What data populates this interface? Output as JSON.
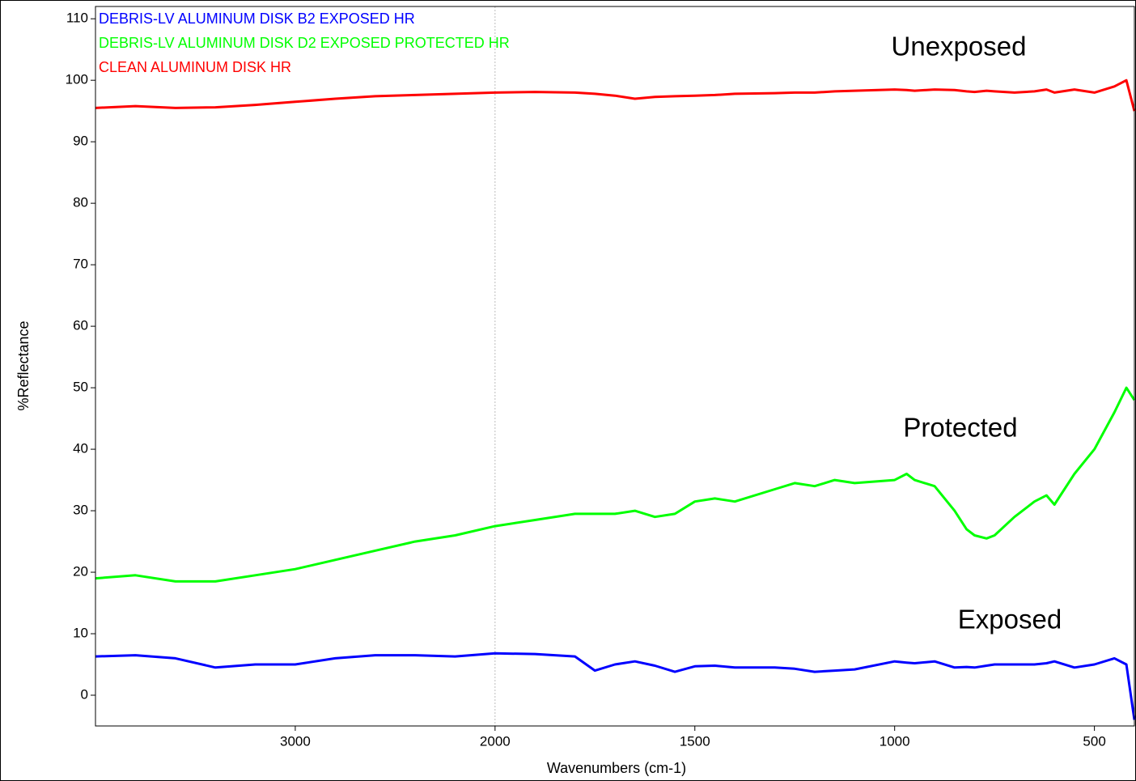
{
  "chart_data": {
    "type": "line",
    "x_label": "Wavenumbers (cm-1)",
    "y_label": "%Reflectance",
    "xlim": [
      4000,
      400
    ],
    "x_break": 2000,
    "xticks": [
      3000,
      2000,
      1500,
      1000,
      500
    ],
    "ylim": [
      -5,
      112
    ],
    "yticks": [
      0,
      10,
      20,
      30,
      40,
      50,
      60,
      70,
      80,
      90,
      100,
      110
    ],
    "legend": "upper left",
    "annotations": [
      "Unexposed",
      "Protected",
      "Exposed"
    ],
    "x": [
      4000,
      3800,
      3600,
      3400,
      3200,
      3000,
      2800,
      2600,
      2400,
      2200,
      2000,
      1900,
      1800,
      1750,
      1700,
      1650,
      1600,
      1550,
      1500,
      1450,
      1400,
      1300,
      1250,
      1200,
      1150,
      1100,
      1000,
      970,
      950,
      900,
      850,
      820,
      800,
      770,
      750,
      700,
      650,
      620,
      600,
      550,
      500,
      450,
      420,
      400
    ],
    "series": [
      {
        "name": "DEBRIS-LV ALUMINUM DISK B2 EXPOSED HR",
        "color": "#0000ff",
        "values": [
          6.3,
          6.5,
          6,
          4.5,
          5,
          5,
          6,
          6.5,
          6.5,
          6.3,
          6.8,
          6.7,
          6.3,
          4,
          5,
          5.5,
          4.8,
          3.8,
          4.7,
          4.8,
          4.5,
          4.5,
          4.3,
          3.8,
          4,
          4.2,
          5.5,
          5.3,
          5.2,
          5.5,
          4.5,
          4.6,
          4.5,
          4.8,
          5,
          5,
          5,
          5.2,
          5.5,
          4.5,
          5,
          6,
          5,
          -4
        ]
      },
      {
        "name": "DEBRIS-LV ALUMINUM DISK D2 EXPOSED PROTECTED  HR",
        "color": "#00ff00",
        "values": [
          19,
          19.5,
          18.5,
          18.5,
          19.5,
          20.5,
          22,
          23.5,
          25,
          26,
          27.5,
          28.5,
          29.5,
          29.5,
          29.5,
          30,
          29,
          29.5,
          31.5,
          32,
          31.5,
          33.5,
          34.5,
          34,
          35,
          34.5,
          35,
          36,
          35,
          34,
          30,
          27,
          26,
          25.5,
          26,
          29,
          31.5,
          32.5,
          31,
          36,
          40,
          46,
          50,
          48
        ]
      },
      {
        "name": "CLEAN ALUMINUM DISK HR",
        "color": "#ff0000",
        "values": [
          95.5,
          95.8,
          95.5,
          95.6,
          96,
          96.5,
          97,
          97.4,
          97.6,
          97.8,
          98,
          98.1,
          98,
          97.8,
          97.5,
          97,
          97.3,
          97.4,
          97.5,
          97.6,
          97.8,
          97.9,
          98,
          98,
          98.2,
          98.3,
          98.5,
          98.4,
          98.3,
          98.5,
          98.4,
          98.2,
          98.1,
          98.3,
          98.2,
          98,
          98.2,
          98.5,
          98,
          98.5,
          98,
          99,
          100,
          95
        ]
      }
    ]
  }
}
